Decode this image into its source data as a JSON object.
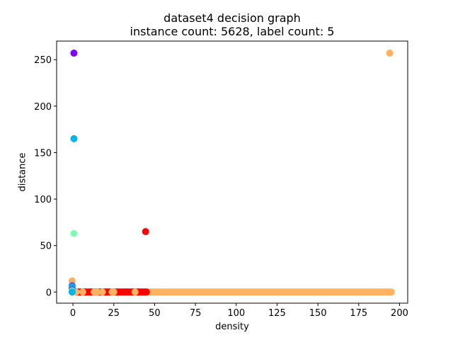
{
  "chart_data": {
    "type": "scatter",
    "title_line1": "dataset4 decision graph",
    "title_line2": "instance count: 5628, label count: 5",
    "xlabel": "density",
    "ylabel": "distance",
    "xlim": [
      -10,
      205
    ],
    "ylim": [
      -12,
      270
    ],
    "xticks": [
      0,
      25,
      50,
      75,
      100,
      125,
      150,
      175,
      200
    ],
    "yticks": [
      0,
      50,
      100,
      150,
      200,
      250
    ],
    "grid": false,
    "colors": {
      "purple": "#8000ff",
      "blue": "#00b5eb",
      "indigo": "#4a6ff0",
      "green": "#80ffb4",
      "orange": "#ffb360",
      "red": "#ff0000"
    },
    "points": [
      {
        "x": 0.6,
        "y": 257,
        "color": "purple"
      },
      {
        "x": 0.6,
        "y": 165,
        "color": "blue"
      },
      {
        "x": 0.6,
        "y": 63,
        "color": "green"
      },
      {
        "x": 44.5,
        "y": 65,
        "color": "red"
      },
      {
        "x": 194,
        "y": 257,
        "color": "orange"
      },
      {
        "x": -0.5,
        "y": 12,
        "color": "orange"
      },
      {
        "x": -0.5,
        "y": 7,
        "color": "indigo"
      },
      {
        "x": -0.5,
        "y": 5,
        "color": "blue"
      },
      {
        "x": -0.5,
        "y": 3,
        "color": "indigo"
      },
      {
        "x": -0.5,
        "y": 1,
        "color": "green"
      },
      {
        "x": -0.5,
        "y": 0,
        "color": "blue"
      }
    ],
    "red_segments": [
      [
        2,
        45
      ]
    ],
    "red_points": [
      3,
      7,
      11,
      15,
      20,
      28,
      33,
      37,
      40,
      44
    ],
    "orange_segments": [
      [
        45,
        195
      ]
    ],
    "orange_points": [
      2,
      6,
      13,
      15,
      18,
      24,
      25,
      38
    ]
  }
}
